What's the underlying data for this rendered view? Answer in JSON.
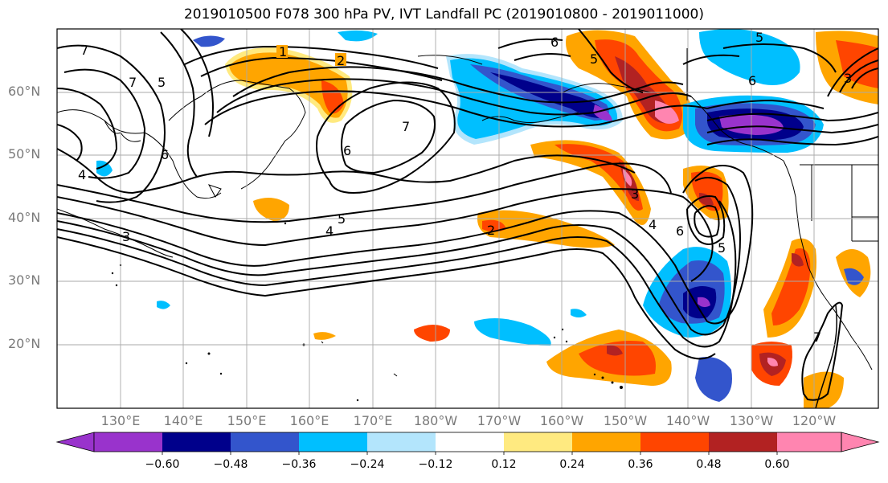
{
  "title": "2019010500 F078 300 hPa PV, IVT Landfall PC (2019010800 - 2019011000)",
  "map": {
    "lat_labels": [
      "60°N",
      "50°N",
      "40°N",
      "30°N",
      "20°N"
    ],
    "lon_labels": [
      "130°E",
      "140°E",
      "150°E",
      "160°E",
      "170°E",
      "180°W",
      "170°W",
      "160°W",
      "150°W",
      "140°W",
      "130°W",
      "120°W"
    ],
    "contour_labels": [
      "1",
      "2",
      "3",
      "4",
      "5",
      "6",
      "7"
    ],
    "shading_colors": {
      "lt_-0.60": "#9933cc",
      "-0.60_-0.48": "#00008b",
      "-0.48_-0.36": "#3355cc",
      "-0.36_-0.24": "#00bfff",
      "-0.24_-0.12": "#b3e5fc",
      "-0.12_0.12": "#ffffff",
      "0.12_0.24": "#ffea80",
      "0.24_0.36": "#ffa500",
      "0.36_0.48": "#ff4500",
      "0.48_0.60": "#b22222",
      "gt_0.60": "#ff85b0"
    }
  },
  "colorbar": {
    "colors": [
      "#9933cc",
      "#00008b",
      "#3355cc",
      "#00bfff",
      "#b3e5fc",
      "#ffffff",
      "#ffea80",
      "#ffa500",
      "#ff4500",
      "#b22222",
      "#ff85b0"
    ],
    "ticks": [
      "−0.60",
      "−0.48",
      "−0.36",
      "−0.24",
      "−0.12",
      "0.12",
      "0.24",
      "0.36",
      "0.48",
      "0.60"
    ]
  }
}
